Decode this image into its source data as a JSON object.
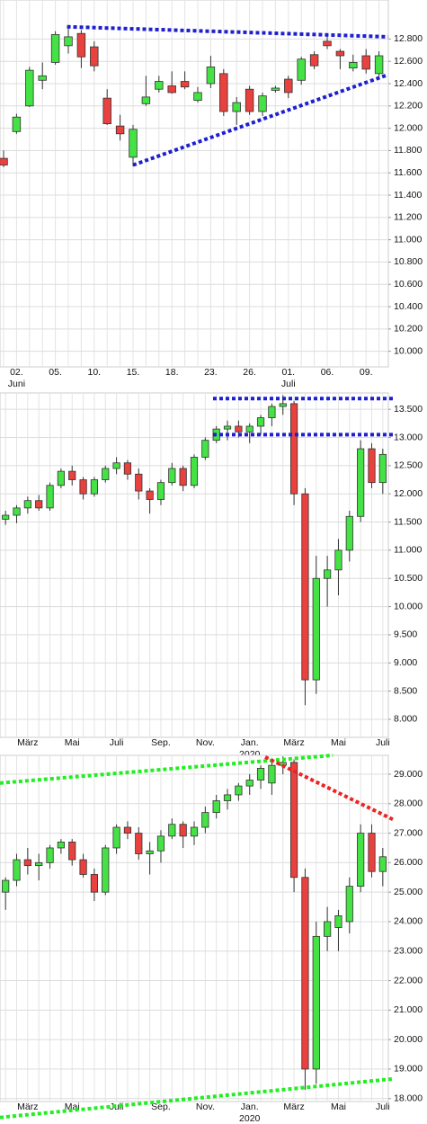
{
  "chart_data": [
    {
      "type": "candlestick",
      "grid": true,
      "up_color": "#44e244",
      "down_color": "#e8413e",
      "edge_color": "#333333",
      "ylim": [
        9860,
        13150
      ],
      "yticks": [
        {
          "value": 10000,
          "label": "10.000"
        },
        {
          "value": 10200,
          "label": "10.200"
        },
        {
          "value": 10400,
          "label": "10.400"
        },
        {
          "value": 10600,
          "label": "10.600"
        },
        {
          "value": 10800,
          "label": "10.800"
        },
        {
          "value": 11000,
          "label": "11.000"
        },
        {
          "value": 11200,
          "label": "11.200"
        },
        {
          "value": 11400,
          "label": "11.400"
        },
        {
          "value": 11600,
          "label": "11.600"
        },
        {
          "value": 11800,
          "label": "11.800"
        },
        {
          "value": 12000,
          "label": "12.000"
        },
        {
          "value": 12200,
          "label": "12.200"
        },
        {
          "value": 12400,
          "label": "12.400"
        },
        {
          "value": 12600,
          "label": "12.600"
        },
        {
          "value": 12800,
          "label": "12.800"
        }
      ],
      "categories": [
        null,
        "02.",
        null,
        null,
        "05.",
        null,
        null,
        "10.",
        null,
        null,
        "15.",
        null,
        null,
        "18.",
        null,
        null,
        "23.",
        null,
        null,
        "26.",
        null,
        null,
        "01.",
        null,
        null,
        "06.",
        null,
        null,
        "09.",
        null
      ],
      "category_sublabels": [
        null,
        "Juni",
        null,
        null,
        null,
        null,
        null,
        null,
        null,
        null,
        null,
        null,
        null,
        null,
        null,
        null,
        null,
        null,
        null,
        null,
        null,
        null,
        "Juli",
        null,
        null,
        null,
        null,
        null,
        null,
        null
      ],
      "open": [
        11730,
        11970,
        12200,
        12430,
        12590,
        12740,
        12850,
        12730,
        12270,
        12020,
        11740,
        12220,
        12350,
        12380,
        12420,
        12250,
        12400,
        12490,
        12150,
        12350,
        12150,
        12340,
        12440,
        12430,
        12660,
        12780,
        12690,
        12540,
        12650,
        12490
      ],
      "high": [
        11800,
        12130,
        12550,
        12590,
        12870,
        12910,
        12880,
        12780,
        12350,
        12120,
        12030,
        12470,
        12470,
        12510,
        12510,
        12370,
        12650,
        12530,
        12280,
        12380,
        12320,
        12380,
        12470,
        12640,
        12690,
        12830,
        12710,
        12660,
        12710,
        12690
      ],
      "low": [
        11650,
        11950,
        12190,
        12350,
        12570,
        12670,
        12540,
        12510,
        12030,
        11890,
        11660,
        12200,
        12320,
        12310,
        12350,
        12230,
        12360,
        12110,
        12030,
        12120,
        12110,
        12320,
        12270,
        12390,
        12530,
        12710,
        12530,
        12510,
        12490,
        12450
      ],
      "close": [
        11670,
        12100,
        12520,
        12470,
        12840,
        12820,
        12640,
        12560,
        12040,
        11950,
        11990,
        12280,
        12420,
        12320,
        12370,
        12320,
        12550,
        12150,
        12230,
        12150,
        12290,
        12360,
        12320,
        12620,
        12560,
        12740,
        12650,
        12590,
        12530,
        12650
      ],
      "trendlines": [
        {
          "color": "#1f1fd0",
          "points": [
            [
              4.9,
              12910
            ],
            [
              29.7,
              12820
            ]
          ]
        },
        {
          "color": "#1f1fd0",
          "points": [
            [
              10,
              11670
            ],
            [
              29.7,
              12480
            ]
          ]
        }
      ]
    },
    {
      "type": "candlestick",
      "grid": true,
      "up_color": "#44e244",
      "down_color": "#e8413e",
      "edge_color": "#333333",
      "ylim": [
        7680,
        13790
      ],
      "yticks": [
        {
          "value": 8000,
          "label": "8.000"
        },
        {
          "value": 8500,
          "label": "8.500"
        },
        {
          "value": 9000,
          "label": "9.000"
        },
        {
          "value": 9500,
          "label": "9.500"
        },
        {
          "value": 10000,
          "label": "10.000"
        },
        {
          "value": 10500,
          "label": "10.500"
        },
        {
          "value": 11000,
          "label": "11.000"
        },
        {
          "value": 11500,
          "label": "11.500"
        },
        {
          "value": 12000,
          "label": "12.000"
        },
        {
          "value": 12500,
          "label": "12.500"
        },
        {
          "value": 13000,
          "label": "13.000"
        },
        {
          "value": 13500,
          "label": "13.500"
        }
      ],
      "categories": [
        null,
        null,
        "März",
        null,
        null,
        null,
        "Mai",
        null,
        null,
        null,
        "Juli",
        null,
        null,
        null,
        "Sep.",
        null,
        null,
        null,
        "Nov.",
        null,
        null,
        null,
        "Jan.",
        null,
        null,
        null,
        "März",
        null,
        null,
        null,
        "Mai",
        null,
        null,
        null,
        "Juli"
      ],
      "category_sublabels": [
        null,
        null,
        null,
        null,
        null,
        null,
        null,
        null,
        null,
        null,
        null,
        null,
        null,
        null,
        null,
        null,
        null,
        null,
        null,
        null,
        null,
        null,
        "2020",
        null,
        null,
        null,
        null,
        null,
        null,
        null,
        null,
        null,
        null,
        null,
        null
      ],
      "open": [
        11550,
        11620,
        11750,
        11880,
        11750,
        12150,
        12400,
        12250,
        12000,
        12250,
        12450,
        12550,
        12350,
        12050,
        11900,
        12200,
        12450,
        12150,
        12650,
        12950,
        13150,
        13200,
        13100,
        13200,
        13350,
        13550,
        13600,
        12000,
        8700,
        10500,
        10650,
        11000,
        11600,
        12800,
        12200
      ],
      "high": [
        11700,
        11800,
        11950,
        11980,
        12200,
        12450,
        12500,
        12300,
        12300,
        12500,
        12650,
        12600,
        12450,
        12100,
        12250,
        12550,
        12500,
        12700,
        13000,
        13200,
        13300,
        13300,
        13250,
        13400,
        13600,
        13750,
        13650,
        12100,
        10900,
        10900,
        11200,
        11700,
        12950,
        12900,
        12800
      ],
      "low": [
        11450,
        11480,
        11650,
        11700,
        11700,
        12100,
        12150,
        11900,
        11950,
        12200,
        12350,
        12250,
        11900,
        11650,
        11800,
        12150,
        12050,
        12100,
        12600,
        12900,
        12950,
        13000,
        12900,
        13050,
        13200,
        13400,
        11800,
        8250,
        8450,
        10000,
        10200,
        10800,
        11500,
        12100,
        12000
      ],
      "close": [
        11620,
        11750,
        11880,
        11750,
        12150,
        12400,
        12250,
        12000,
        12250,
        12450,
        12550,
        12350,
        12050,
        11900,
        12200,
        12450,
        12150,
        12650,
        12950,
        13150,
        13200,
        13100,
        13200,
        13350,
        13550,
        13600,
        12000,
        8700,
        10500,
        10650,
        11000,
        11600,
        12800,
        12200,
        12700
      ],
      "trendlines": [
        {
          "color": "#1f1fd0",
          "points": [
            [
              18.7,
              13690
            ],
            [
              35,
              13690
            ]
          ]
        },
        {
          "color": "#1f1fd0",
          "points": [
            [
              18.7,
              13050
            ],
            [
              35,
              13050
            ]
          ]
        }
      ]
    },
    {
      "type": "candlestick",
      "grid": true,
      "up_color": "#44e244",
      "down_color": "#e8413e",
      "edge_color": "#333333",
      "ylim": [
        17900,
        29640
      ],
      "yticks": [
        {
          "value": 18000,
          "label": "18.000"
        },
        {
          "value": 19000,
          "label": "19.000"
        },
        {
          "value": 20000,
          "label": "20.000"
        },
        {
          "value": 21000,
          "label": "21.000"
        },
        {
          "value": 22000,
          "label": "22.000"
        },
        {
          "value": 23000,
          "label": "23.000"
        },
        {
          "value": 24000,
          "label": "24.000"
        },
        {
          "value": 25000,
          "label": "25.000"
        },
        {
          "value": 26000,
          "label": "26.000"
        },
        {
          "value": 27000,
          "label": "27.000"
        },
        {
          "value": 28000,
          "label": "28.000"
        },
        {
          "value": 29000,
          "label": "29.000"
        }
      ],
      "categories": [
        null,
        null,
        "März",
        null,
        null,
        null,
        "Mai",
        null,
        null,
        null,
        "Juli",
        null,
        null,
        null,
        "Sep.",
        null,
        null,
        null,
        "Nov.",
        null,
        null,
        null,
        "Jan.",
        null,
        null,
        null,
        "März",
        null,
        null,
        null,
        "Mai",
        null,
        null,
        null,
        "Juli"
      ],
      "category_sublabels": [
        null,
        null,
        null,
        null,
        null,
        null,
        null,
        null,
        null,
        null,
        null,
        null,
        null,
        null,
        null,
        null,
        null,
        null,
        null,
        null,
        null,
        null,
        "2020",
        null,
        null,
        null,
        null,
        null,
        null,
        null,
        null,
        null,
        null,
        null,
        null
      ],
      "open": [
        25000,
        25400,
        26100,
        25900,
        26000,
        26500,
        26700,
        26100,
        25600,
        25000,
        26500,
        27200,
        27000,
        26300,
        26400,
        26900,
        27300,
        26900,
        27200,
        27700,
        28100,
        28300,
        28600,
        28800,
        28700,
        29300,
        29400,
        25500,
        19000,
        23500,
        23800,
        24000,
        25200,
        27000,
        25700
      ],
      "high": [
        25500,
        26300,
        26500,
        26300,
        26600,
        26800,
        26800,
        26300,
        25800,
        26600,
        27300,
        27400,
        27200,
        26700,
        27100,
        27500,
        27400,
        27400,
        27900,
        28300,
        28500,
        28700,
        29000,
        29300,
        29400,
        29600,
        29500,
        25800,
        24000,
        24500,
        24400,
        25500,
        27300,
        27300,
        26500
      ],
      "low": [
        24400,
        25200,
        25600,
        25400,
        25800,
        26300,
        25900,
        25500,
        24700,
        24900,
        26300,
        26800,
        26100,
        25600,
        26000,
        26800,
        26500,
        26600,
        27000,
        27500,
        27800,
        28100,
        28300,
        28500,
        28300,
        29000,
        25000,
        18300,
        18500,
        23000,
        23000,
        23600,
        25000,
        25500,
        25200
      ],
      "close": [
        25400,
        26100,
        25900,
        26000,
        26500,
        26700,
        26100,
        25600,
        25000,
        26500,
        27200,
        27000,
        26300,
        26400,
        26900,
        27300,
        26900,
        27200,
        27700,
        28100,
        28300,
        28600,
        28800,
        29200,
        29300,
        29400,
        25500,
        19000,
        23500,
        24000,
        24200,
        25200,
        27000,
        25700,
        26200
      ],
      "trendlines": [
        {
          "color": "#22ee22",
          "points": [
            [
              -0.5,
              28700
            ],
            [
              29.5,
              29640
            ]
          ]
        },
        {
          "color": "#22ee22",
          "points": [
            [
              -0.5,
              17360
            ],
            [
              35,
              18670
            ]
          ]
        },
        {
          "color": "#ee2222",
          "points": [
            [
              23.4,
              29580
            ],
            [
              35,
              27450
            ]
          ]
        }
      ]
    }
  ]
}
